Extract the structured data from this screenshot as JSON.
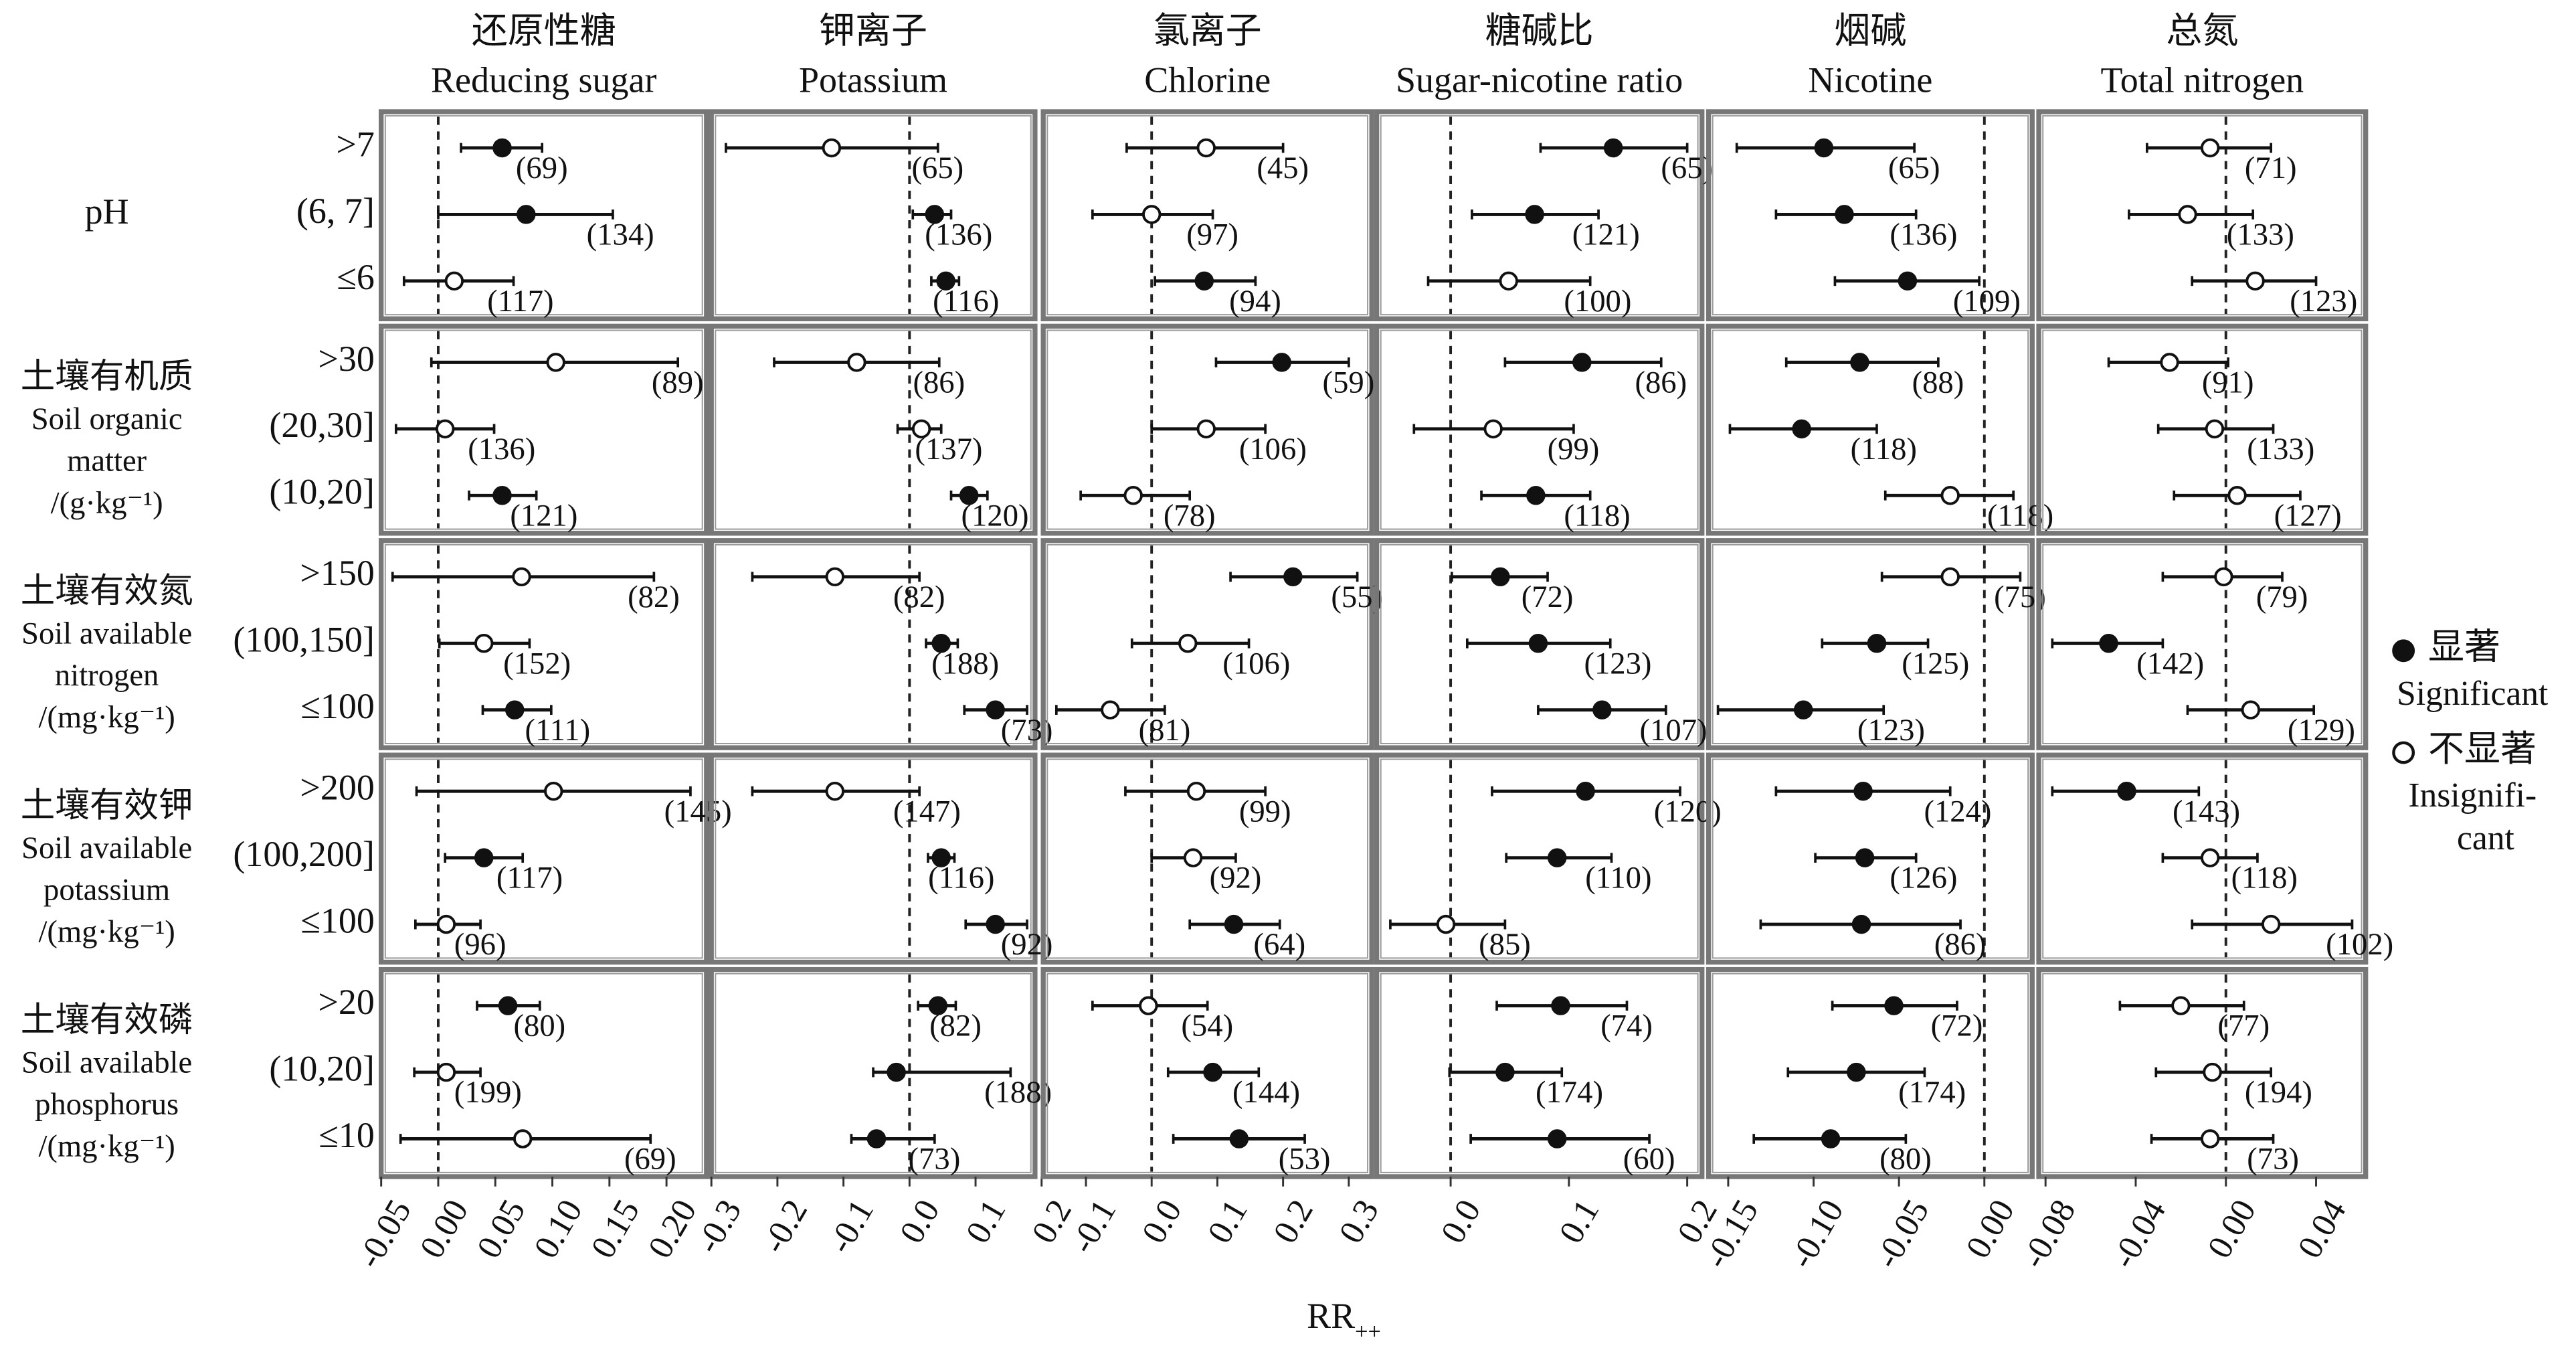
{
  "chart_data": [
    {
      "type": "forest",
      "title_zh": "还原性糖",
      "title_en": "Reducing sugar",
      "xlim": [
        -0.05,
        0.235
      ],
      "xticks": [
        -0.05,
        {
          "value": 0,
          "label": "0.00"
        },
        0.05,
        {
          "value": 0.1,
          "label": "0.10"
        },
        0.15,
        {
          "value": 0.2,
          "label": "0.20"
        }
      ],
      "values": [
        0.056,
        0.077,
        0.014,
        0.103,
        0.006,
        0.056,
        0.073,
        0.04,
        0.067,
        0.101,
        0.04,
        0.007,
        0.061,
        0.007,
        0.074
      ],
      "lower": [
        0.02,
        0.0,
        -0.03,
        -0.006,
        -0.037,
        0.027,
        -0.04,
        0.001,
        0.039,
        -0.019,
        0.006,
        -0.02,
        0.034,
        -0.021,
        -0.033
      ],
      "upper": [
        0.091,
        0.153,
        0.066,
        0.21,
        0.049,
        0.086,
        0.189,
        0.08,
        0.099,
        0.221,
        0.074,
        0.037,
        0.089,
        0.037,
        0.186
      ],
      "significant": [
        true,
        true,
        false,
        false,
        false,
        true,
        false,
        false,
        true,
        false,
        true,
        false,
        true,
        false,
        false
      ],
      "n_labels": [
        "(69)",
        "(134)",
        "(117)",
        "(89)",
        "(136)",
        "(121)",
        "(82)",
        "(152)",
        "(111)",
        "(145)",
        "(117)",
        "(96)",
        "(80)",
        "(199)",
        "(69)"
      ]
    },
    {
      "type": "forest",
      "title_zh": "钾离子",
      "title_en": "Potassium",
      "xlim": [
        -0.3,
        0.19
      ],
      "xticks": [
        -0.3,
        -0.2,
        -0.1,
        {
          "value": 0,
          "label": "0.0"
        },
        0.1,
        0.2
      ],
      "values": [
        -0.118,
        0.038,
        0.055,
        -0.08,
        0.018,
        0.09,
        -0.113,
        0.048,
        0.13,
        -0.113,
        0.048,
        0.13,
        0.043,
        -0.02,
        -0.05
      ],
      "lower": [
        -0.278,
        0.005,
        0.033,
        -0.205,
        -0.018,
        0.063,
        -0.238,
        0.025,
        0.083,
        -0.238,
        0.028,
        0.085,
        0.013,
        -0.055,
        -0.088
      ],
      "upper": [
        0.043,
        0.063,
        0.075,
        0.045,
        0.048,
        0.118,
        0.015,
        0.073,
        0.178,
        0.015,
        0.068,
        0.178,
        0.07,
        0.153,
        0.038
      ],
      "significant": [
        false,
        true,
        true,
        false,
        false,
        true,
        false,
        true,
        true,
        false,
        true,
        true,
        true,
        true,
        true
      ],
      "n_labels": [
        "(65)",
        "(136)",
        "(116)",
        "(86)",
        "(137)",
        "(120)",
        "(82)",
        "(188)",
        "(73)",
        "(147)",
        "(116)",
        "(92)",
        "(82)",
        "(188)",
        "(73)"
      ]
    },
    {
      "type": "forest",
      "title_zh": "氯离子",
      "title_en": "Chlorine",
      "xlim": [
        -0.165,
        0.335
      ],
      "xticks": [
        -0.1,
        {
          "value": 0,
          "label": "0.0"
        },
        0.1,
        0.2,
        0.3
      ],
      "values": [
        0.083,
        0.0,
        0.08,
        0.198,
        0.083,
        -0.028,
        0.215,
        0.055,
        -0.063,
        0.068,
        0.063,
        0.125,
        -0.005,
        0.093,
        0.133
      ],
      "lower": [
        -0.038,
        -0.09,
        0.005,
        0.098,
        0.0,
        -0.108,
        0.12,
        -0.03,
        -0.145,
        -0.04,
        0.0,
        0.058,
        -0.09,
        0.025,
        0.033
      ],
      "upper": [
        0.2,
        0.093,
        0.158,
        0.3,
        0.173,
        0.058,
        0.313,
        0.148,
        0.02,
        0.173,
        0.128,
        0.195,
        0.085,
        0.163,
        0.233
      ],
      "significant": [
        false,
        false,
        true,
        true,
        false,
        false,
        true,
        false,
        false,
        false,
        false,
        true,
        false,
        true,
        true
      ],
      "n_labels": [
        "(45)",
        "(97)",
        "(94)",
        "(59)",
        "(106)",
        "(78)",
        "(55)",
        "(106)",
        "(81)",
        "(99)",
        "(92)",
        "(64)",
        "(54)",
        "(144)",
        "(53)"
      ]
    },
    {
      "type": "forest",
      "title_zh": "糖碱比",
      "title_en": "Sugar-nicotine ratio",
      "xlim": [
        -0.0625,
        0.2125
      ],
      "xticks": [
        {
          "value": 0,
          "label": "0.0"
        },
        0.1,
        0.2
      ],
      "values": [
        0.1375,
        0.071,
        0.049,
        0.111,
        0.036,
        0.072,
        0.042,
        0.074,
        0.128,
        0.114,
        0.09,
        -0.004,
        0.093,
        0.046,
        0.09
      ],
      "lower": [
        0.076,
        0.018,
        -0.019,
        0.046,
        -0.031,
        0.026,
        0.001,
        0.014,
        0.074,
        0.035,
        0.047,
        -0.051,
        0.039,
        -0.001,
        0.017
      ],
      "upper": [
        0.2,
        0.125,
        0.118,
        0.178,
        0.104,
        0.118,
        0.082,
        0.135,
        0.182,
        0.194,
        0.136,
        0.046,
        0.149,
        0.094,
        0.168
      ],
      "significant": [
        true,
        true,
        false,
        true,
        false,
        true,
        true,
        true,
        true,
        true,
        true,
        false,
        true,
        true,
        true
      ],
      "n_labels": [
        "(65)",
        "(121)",
        "(100)",
        "(86)",
        "(99)",
        "(118)",
        "(72)",
        "(123)",
        "(107)",
        "(120)",
        "(110)",
        "(85)",
        "(74)",
        "(174)",
        "(60)"
      ]
    },
    {
      "type": "forest",
      "title_zh": "烟碱",
      "title_en": "Nicotine",
      "xlim": [
        -0.1615,
        0.028
      ],
      "xticks": [
        -0.15,
        {
          "value": -0.1,
          "label": "-0.10"
        },
        -0.05,
        {
          "value": 0,
          "label": "0.00"
        }
      ],
      "values": [
        -0.094,
        -0.082,
        -0.045,
        -0.073,
        -0.107,
        -0.02,
        -0.02,
        -0.063,
        -0.106,
        -0.071,
        -0.07,
        -0.072,
        -0.053,
        -0.075,
        -0.09
      ],
      "lower": [
        -0.145,
        -0.122,
        -0.0875,
        -0.116,
        -0.149,
        -0.058,
        -0.06,
        -0.095,
        -0.156,
        -0.122,
        -0.099,
        -0.131,
        -0.089,
        -0.115,
        -0.135
      ],
      "upper": [
        -0.041,
        -0.04,
        -0.003,
        -0.027,
        -0.063,
        0.017,
        0.021,
        -0.033,
        -0.059,
        -0.02,
        -0.04,
        -0.014,
        -0.016,
        -0.035,
        -0.046
      ],
      "significant": [
        true,
        true,
        true,
        true,
        true,
        false,
        false,
        true,
        true,
        true,
        true,
        true,
        true,
        true,
        true
      ],
      "n_labels": [
        "(65)",
        "(136)",
        "(109)",
        "(88)",
        "(118)",
        "(118)",
        "(75)",
        "(125)",
        "(123)",
        "(124)",
        "(126)",
        "(86)",
        "(72)",
        "(174)",
        "(80)"
      ]
    },
    {
      "type": "forest",
      "title_zh": "总氮",
      "title_en": "Total nitrogen",
      "xlim": [
        -0.083,
        0.062
      ],
      "xticks": [
        -0.08,
        -0.04,
        {
          "value": 0,
          "label": "0.00"
        },
        0.04
      ],
      "values": [
        -0.007,
        -0.017,
        0.013,
        -0.025,
        -0.005,
        0.005,
        -0.001,
        -0.052,
        0.011,
        -0.044,
        -0.007,
        0.02,
        -0.02,
        -0.006,
        -0.007
      ],
      "lower": [
        -0.035,
        -0.043,
        -0.015,
        -0.052,
        -0.03,
        -0.023,
        -0.028,
        -0.077,
        -0.017,
        -0.077,
        -0.028,
        -0.015,
        -0.047,
        -0.031,
        -0.033
      ],
      "upper": [
        0.02,
        0.012,
        0.04,
        0.001,
        0.021,
        0.033,
        0.025,
        -0.028,
        0.039,
        -0.012,
        0.014,
        0.056,
        0.008,
        0.02,
        0.021
      ],
      "significant": [
        false,
        false,
        false,
        false,
        false,
        false,
        false,
        true,
        false,
        true,
        false,
        false,
        false,
        false,
        false
      ],
      "n_labels": [
        "(71)",
        "(133)",
        "(123)",
        "(91)",
        "(133)",
        "(127)",
        "(79)",
        "(142)",
        "(129)",
        "(143)",
        "(118)",
        "(102)",
        "(77)",
        "(194)",
        "(73)"
      ]
    }
  ],
  "factors": [
    {
      "name_lines": [
        "pH"
      ],
      "levels": [
        ">7",
        "(6, 7]",
        "≤6"
      ]
    },
    {
      "name_lines": [
        "土壤有机质",
        "Soil organic",
        "matter",
        "/(g·kg⁻¹)"
      ],
      "levels": [
        ">30",
        "(20,30]",
        "(10,20]"
      ]
    },
    {
      "name_lines": [
        "土壤有效氮",
        "Soil available",
        "nitrogen",
        "/(mg·kg⁻¹)"
      ],
      "levels": [
        ">150",
        "(100,150]",
        "≤100"
      ]
    },
    {
      "name_lines": [
        "土壤有效钾",
        "Soil available",
        "potassium",
        "/(mg·kg⁻¹)"
      ],
      "levels": [
        ">200",
        "(100,200]",
        "≤100"
      ]
    },
    {
      "name_lines": [
        "土壤有效磷",
        "Soil available",
        "phosphorus",
        "/(mg·kg⁻¹)"
      ],
      "levels": [
        ">20",
        "(10,20]",
        "≤10"
      ]
    }
  ],
  "legend": [
    {
      "label_zh": "显著",
      "label_en_lines": [
        "Significant"
      ]
    },
    {
      "label_zh": "不显著",
      "label_en_lines": [
        "Insignifi-",
        "cant"
      ]
    }
  ],
  "xlabel": "RR",
  "xlabel_sub": "++"
}
